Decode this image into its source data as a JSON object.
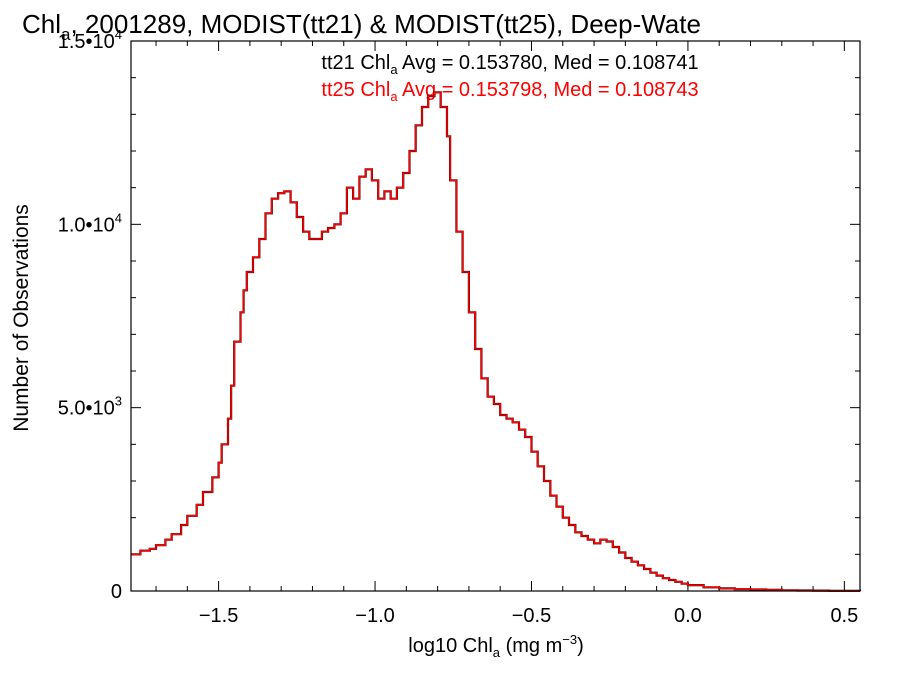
{
  "chart_data": {
    "type": "line",
    "step": true,
    "title": {
      "chl": "Chl",
      "sub": "a",
      "rest": ", 2001289, MODIST(tt21) & MODIST(tt25), Deep-Wate"
    },
    "xlabel": {
      "pre": "log10 Chl",
      "sub": "a",
      "mid": " (mg m",
      "sup": "−3",
      "post": ")"
    },
    "ylabel": "Number of Observations",
    "xlim": [
      -1.78,
      0.55
    ],
    "ylim": [
      0,
      15000
    ],
    "xticks": [
      {
        "v": -1.5,
        "label": "−1.5"
      },
      {
        "v": -1.0,
        "label": "−1.0"
      },
      {
        "v": -0.5,
        "label": "−0.5"
      },
      {
        "v": 0.0,
        "label": "0.0"
      },
      {
        "v": 0.5,
        "label": "0.5"
      }
    ],
    "yticks": [
      {
        "v": 0,
        "m": "0",
        "e": ""
      },
      {
        "v": 5000,
        "m": "5.0•10",
        "e": "3"
      },
      {
        "v": 10000,
        "m": "1.0•10",
        "e": "4"
      },
      {
        "v": 15000,
        "m": "1.5•10",
        "e": "4"
      }
    ],
    "annotations": [
      {
        "pre": "tt21 Chl",
        "sub": "a",
        "post": " Avg = 0.153780, Med = 0.108741",
        "color": "#000000"
      },
      {
        "pre": "tt25 Chl",
        "sub": "a",
        "post": " Avg = 0.153798, Med = 0.108743",
        "color": "#ff0000"
      }
    ],
    "series_colors": [
      "#000000",
      "#ff0000"
    ],
    "x": [
      -1.78,
      -1.75,
      -1.72,
      -1.7,
      -1.67,
      -1.65,
      -1.62,
      -1.6,
      -1.57,
      -1.55,
      -1.52,
      -1.5,
      -1.49,
      -1.47,
      -1.46,
      -1.45,
      -1.43,
      -1.42,
      -1.41,
      -1.39,
      -1.37,
      -1.35,
      -1.33,
      -1.31,
      -1.29,
      -1.27,
      -1.25,
      -1.23,
      -1.21,
      -1.19,
      -1.17,
      -1.15,
      -1.13,
      -1.11,
      -1.09,
      -1.07,
      -1.05,
      -1.03,
      -1.01,
      -0.99,
      -0.97,
      -0.95,
      -0.93,
      -0.91,
      -0.89,
      -0.87,
      -0.85,
      -0.83,
      -0.81,
      -0.79,
      -0.77,
      -0.76,
      -0.74,
      -0.72,
      -0.7,
      -0.68,
      -0.66,
      -0.64,
      -0.62,
      -0.6,
      -0.58,
      -0.56,
      -0.54,
      -0.52,
      -0.5,
      -0.48,
      -0.46,
      -0.44,
      -0.42,
      -0.4,
      -0.38,
      -0.36,
      -0.34,
      -0.32,
      -0.3,
      -0.28,
      -0.26,
      -0.24,
      -0.22,
      -0.2,
      -0.18,
      -0.16,
      -0.14,
      -0.12,
      -0.1,
      -0.08,
      -0.06,
      -0.04,
      -0.02,
      0.0,
      0.05,
      0.1,
      0.15,
      0.2,
      0.25,
      0.3,
      0.35,
      0.4,
      0.45,
      0.5,
      0.55
    ],
    "y": [
      1000,
      1100,
      1150,
      1250,
      1400,
      1550,
      1800,
      2050,
      2350,
      2700,
      3100,
      3500,
      4000,
      4700,
      5600,
      6800,
      7600,
      8200,
      8700,
      9100,
      9600,
      10300,
      10700,
      10850,
      10900,
      10600,
      10200,
      9800,
      9600,
      9600,
      9800,
      9900,
      10000,
      10300,
      11000,
      10700,
      11300,
      11500,
      11200,
      10700,
      10900,
      10700,
      11000,
      11400,
      12000,
      12700,
      13200,
      13500,
      13600,
      13200,
      12400,
      11200,
      9800,
      8700,
      7600,
      6600,
      5800,
      5300,
      5100,
      4800,
      4700,
      4600,
      4400,
      4200,
      3800,
      3400,
      3000,
      2600,
      2300,
      2000,
      1800,
      1600,
      1500,
      1400,
      1300,
      1400,
      1350,
      1200,
      1050,
      900,
      800,
      700,
      600,
      500,
      420,
      350,
      300,
      250,
      200,
      160,
      100,
      70,
      50,
      40,
      30,
      20,
      15,
      10,
      5,
      5,
      0
    ]
  }
}
